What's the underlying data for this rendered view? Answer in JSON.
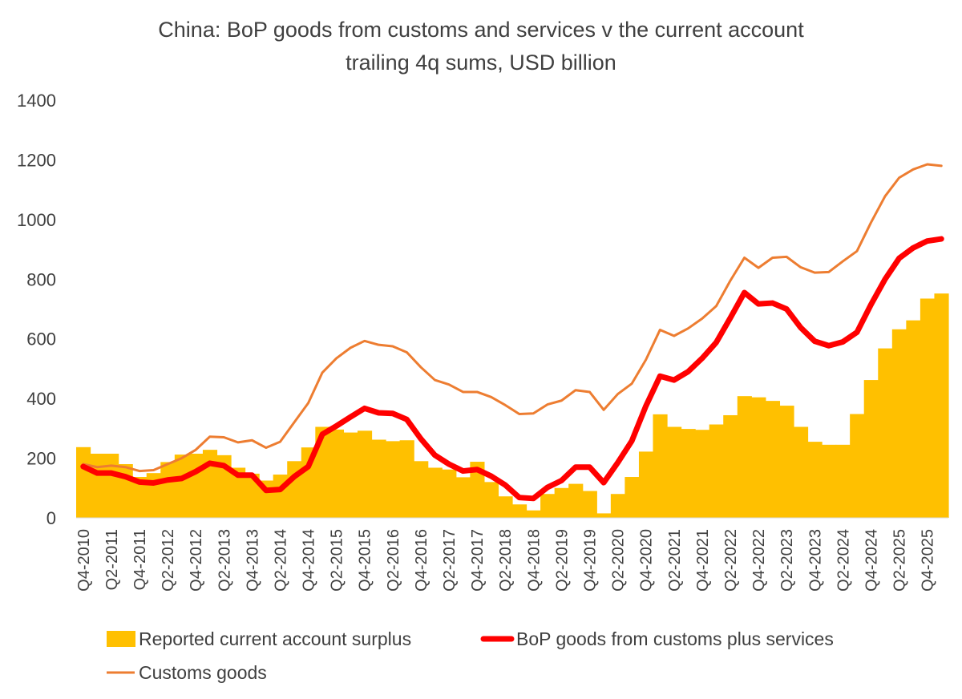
{
  "chart_data": {
    "type": "bar",
    "title": "China: BoP goods from customs and services v the current account",
    "subtitle": "trailing 4q sums, USD billion",
    "xlabel": "",
    "ylabel": "",
    "ylim": [
      0,
      1400
    ],
    "yticks": [
      0,
      200,
      400,
      600,
      800,
      1000,
      1200,
      1400
    ],
    "grid": false,
    "legend_position": "bottom",
    "x": [
      "Q4-2010",
      "Q1-2011",
      "Q2-2011",
      "Q3-2011",
      "Q4-2011",
      "Q1-2012",
      "Q2-2012",
      "Q3-2012",
      "Q4-2012",
      "Q1-2013",
      "Q2-2013",
      "Q3-2013",
      "Q4-2013",
      "Q1-2014",
      "Q2-2014",
      "Q3-2014",
      "Q4-2014",
      "Q1-2015",
      "Q2-2015",
      "Q3-2015",
      "Q4-2015",
      "Q1-2016",
      "Q2-2016",
      "Q3-2016",
      "Q4-2016",
      "Q1-2017",
      "Q2-2017",
      "Q3-2017",
      "Q4-2017",
      "Q1-2018",
      "Q2-2018",
      "Q3-2018",
      "Q4-2018",
      "Q1-2019",
      "Q2-2019",
      "Q3-2019",
      "Q4-2019",
      "Q1-2020",
      "Q2-2020",
      "Q3-2020",
      "Q4-2020",
      "Q1-2021",
      "Q2-2021",
      "Q3-2021",
      "Q4-2021",
      "Q1-2022",
      "Q2-2022",
      "Q3-2022",
      "Q4-2022",
      "Q1-2023",
      "Q2-2023",
      "Q3-2023",
      "Q4-2023",
      "Q1-2024",
      "Q2-2024",
      "Q3-2024",
      "Q4-2024",
      "Q1-2025",
      "Q2-2025",
      "Q3-2025",
      "Q4-2025",
      "Q1-2026"
    ],
    "xtick_labels": [
      "Q4-2010",
      "Q2-2011",
      "Q4-2011",
      "Q2-2012",
      "Q4-2012",
      "Q2-2013",
      "Q4-2013",
      "Q2-2014",
      "Q4-2014",
      "Q2-2015",
      "Q4-2015",
      "Q2-2016",
      "Q4-2016",
      "Q2-2017",
      "Q4-2017",
      "Q2-2018",
      "Q4-2018",
      "Q2-2019",
      "Q4-2019",
      "Q2-2020",
      "Q4-2020",
      "Q2-2021",
      "Q4-2021",
      "Q2-2022",
      "Q4-2022",
      "Q2-2023",
      "Q4-2023",
      "Q2-2024",
      "Q4-2024",
      "Q2-2025",
      "Q4-2025"
    ],
    "series": [
      {
        "name": "Reported current account surplus",
        "kind": "bar",
        "color": "#FFC000",
        "values": [
          237,
          215,
          215,
          180,
          137,
          150,
          187,
          212,
          215,
          228,
          210,
          168,
          148,
          125,
          145,
          190,
          236,
          305,
          296,
          286,
          292,
          262,
          257,
          260,
          190,
          168,
          162,
          136,
          188,
          120,
          72,
          45,
          25,
          80,
          100,
          114,
          90,
          15,
          80,
          137,
          222,
          347,
          305,
          298,
          295,
          313,
          344,
          408,
          404,
          392,
          376,
          305,
          255,
          245,
          245,
          348,
          462,
          568,
          632,
          662,
          735,
          752
        ]
      },
      {
        "name": "BoP goods from customs plus services",
        "kind": "line",
        "color": "#FF0000",
        "values": [
          172,
          150,
          150,
          138,
          120,
          117,
          127,
          132,
          155,
          183,
          175,
          143,
          143,
          92,
          95,
          138,
          172,
          280,
          308,
          338,
          367,
          352,
          350,
          330,
          265,
          210,
          180,
          157,
          162,
          140,
          110,
          68,
          65,
          102,
          125,
          170,
          170,
          118,
          185,
          258,
          375,
          475,
          462,
          490,
          535,
          588,
          670,
          755,
          717,
          720,
          700,
          638,
          592,
          577,
          590,
          622,
          715,
          800,
          870,
          905,
          928,
          935
        ]
      },
      {
        "name": "Customs goods",
        "kind": "line",
        "color": "#ED7D31",
        "values": [
          180,
          170,
          175,
          170,
          157,
          160,
          180,
          200,
          228,
          272,
          270,
          253,
          260,
          235,
          255,
          320,
          385,
          487,
          535,
          570,
          593,
          580,
          575,
          555,
          505,
          462,
          447,
          422,
          422,
          405,
          378,
          348,
          350,
          380,
          393,
          428,
          422,
          362,
          415,
          450,
          530,
          630,
          610,
          635,
          668,
          710,
          795,
          872,
          838,
          872,
          875,
          840,
          822,
          824,
          860,
          894,
          990,
          1078,
          1140,
          1168,
          1185,
          1180
        ]
      }
    ]
  }
}
